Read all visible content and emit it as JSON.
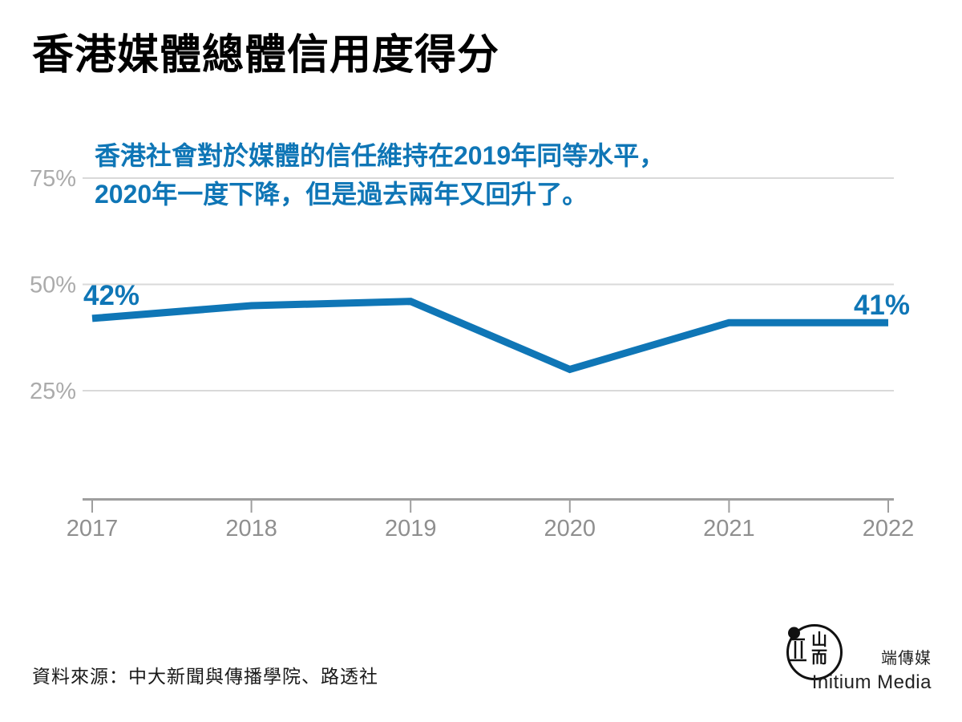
{
  "title": "香港媒體總體信用度得分",
  "annotation": {
    "lines": [
      "香港社會對於媒體的信任維持在2019年同等水平，",
      "2020年一度下降，但是過去兩年又回升了。"
    ]
  },
  "source": "資料來源：中大新聞與傳播學院、路透社",
  "logo": {
    "name_zh": "端傳媒",
    "name_en": "Initium Media"
  },
  "colors": {
    "accent_blue": "#0f76b6",
    "gridline": "#d9d9d9",
    "axis": "#9e9e9e",
    "ytick_label": "#ababab",
    "xtick_label": "#8f8f8f",
    "title_text": "#000000",
    "source_text": "#1a1a1a"
  },
  "chart_data": {
    "type": "line",
    "title": "香港媒體總體信用度得分",
    "x": [
      2017,
      2018,
      2019,
      2020,
      2021,
      2022
    ],
    "series": [
      {
        "name": "媒體總體信用度得分",
        "values": [
          42,
          45,
          46,
          30,
          41,
          41
        ]
      }
    ],
    "point_labels": {
      "start": "42%",
      "end": "41%"
    },
    "yticks": [
      75,
      50,
      25
    ],
    "ytick_labels": [
      "75%",
      "50%",
      "25%"
    ],
    "ylim": [
      0,
      80
    ],
    "xlabel": "",
    "ylabel": "",
    "grid": "horizontal",
    "legend": false
  }
}
